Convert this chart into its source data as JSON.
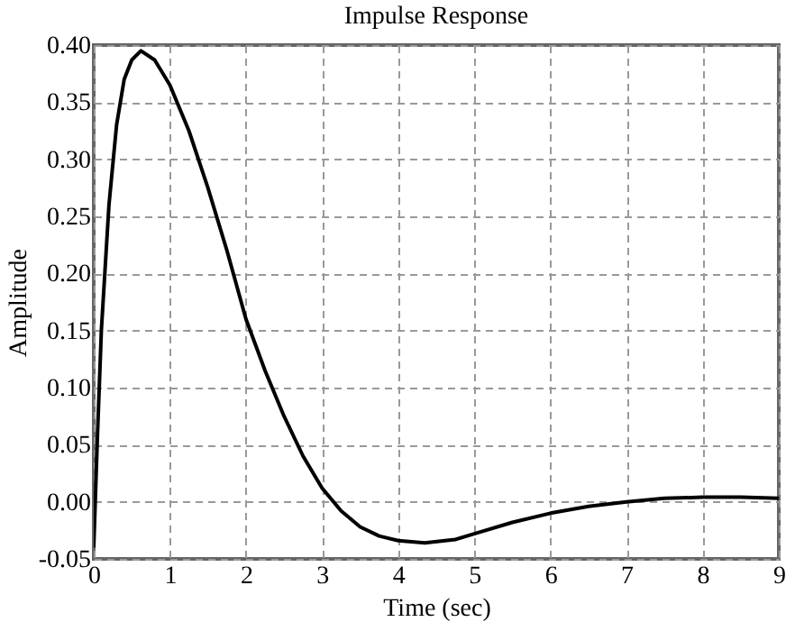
{
  "chart_data": {
    "type": "line",
    "title": "Impulse Response",
    "xlabel": "Time (sec)",
    "ylabel": "Amplitude",
    "xlim": [
      0,
      9
    ],
    "xticks": [
      0,
      1,
      2,
      3,
      4,
      5,
      6,
      7,
      8,
      9
    ],
    "ylim": [
      -0.05,
      0.4
    ],
    "yticks": [
      {
        "value": -0.05,
        "label": "-0.05"
      },
      {
        "value": 0,
        "label": "0.00"
      },
      {
        "value": 0.05,
        "label": "0.05"
      },
      {
        "value": 0.1,
        "label": "0.10"
      },
      {
        "value": 0.15,
        "label": "0.15"
      },
      {
        "value": 0.2,
        "label": "0.20"
      },
      {
        "value": 0.25,
        "label": "0.25"
      },
      {
        "value": 0.3,
        "label": "0.30"
      },
      {
        "value": 0.35,
        "label": "0.35"
      },
      {
        "value": 0.4,
        "label": "0.40"
      }
    ],
    "grid": true,
    "line_style": "solid",
    "marker": "none",
    "x": [
      0,
      0.05,
      0.1,
      0.2,
      0.3,
      0.4,
      0.5,
      0.62,
      0.8,
      1.0,
      1.25,
      1.5,
      1.75,
      2.0,
      2.25,
      2.5,
      2.75,
      3.0,
      3.25,
      3.5,
      3.75,
      4.0,
      4.35,
      4.75,
      5.0,
      5.5,
      6.0,
      6.5,
      7.0,
      7.5,
      8.0,
      8.5,
      9.0
    ],
    "series": [
      {
        "color": "#000000",
        "values": [
          -0.04,
          0.06,
          0.15,
          0.26,
          0.33,
          0.37,
          0.387,
          0.395,
          0.387,
          0.365,
          0.325,
          0.275,
          0.22,
          0.16,
          0.115,
          0.075,
          0.04,
          0.012,
          -0.008,
          -0.022,
          -0.03,
          -0.034,
          -0.036,
          -0.033,
          -0.028,
          -0.018,
          -0.01,
          -0.004,
          0.0,
          0.003,
          0.004,
          0.004,
          0.003
        ]
      }
    ]
  }
}
